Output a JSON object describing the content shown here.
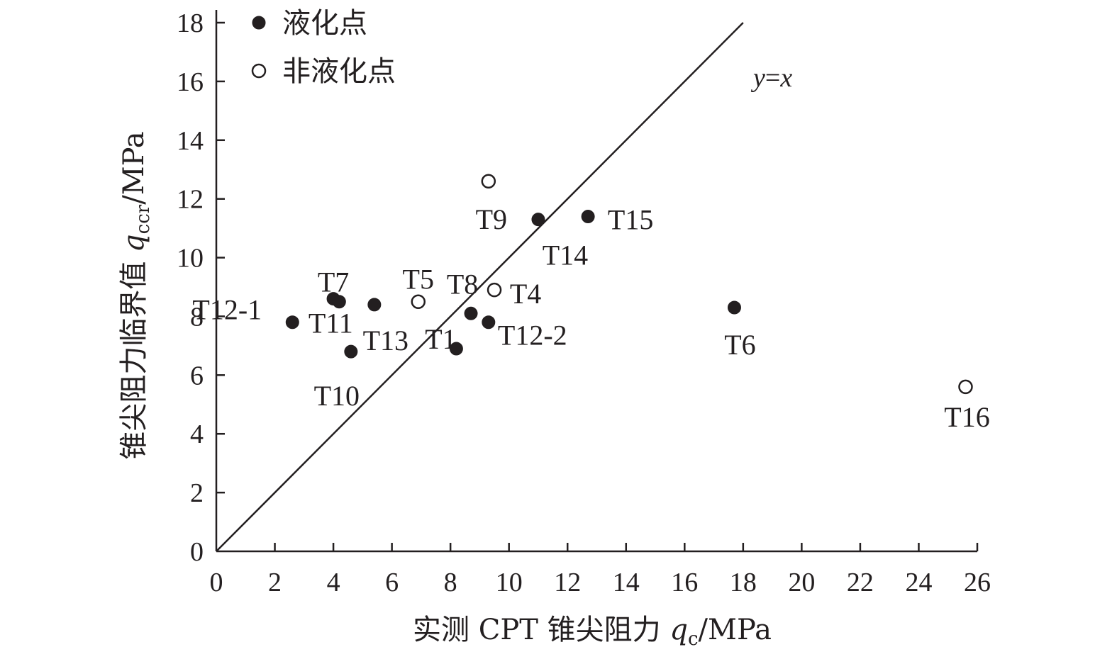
{
  "chart_data": {
    "type": "scatter",
    "title": "",
    "xlabel": {
      "prefix": "实测 CPT 锥尖阻力 ",
      "symbol": "q",
      "subscript": "c",
      "unit": "/MPa"
    },
    "ylabel": {
      "prefix": "锥尖阻力临界值 ",
      "symbol": "q",
      "subscript": "ccr",
      "unit": "/MPa"
    },
    "xlim": [
      0,
      26
    ],
    "ylim": [
      0,
      18
    ],
    "xticks": [
      "0",
      "2",
      "4",
      "6",
      "8",
      "10",
      "12",
      "14",
      "16",
      "18",
      "20",
      "22",
      "24",
      "26"
    ],
    "yticks": [
      "0",
      "2",
      "4",
      "6",
      "8",
      "10",
      "12",
      "14",
      "16",
      "18"
    ],
    "grid": false,
    "legend_position": "top-left",
    "colors": {
      "ink": "#231f20",
      "background": "#ffffff"
    },
    "reference_line": {
      "label_var1": "y",
      "label_eq": "=",
      "label_var2": "x",
      "from": [
        0,
        0
      ],
      "to": [
        18,
        18
      ]
    },
    "series": [
      {
        "name": "液化点",
        "marker": "filled-circle",
        "points": [
          {
            "label": "T12-1",
            "x": 2.6,
            "y": 7.8
          },
          {
            "label": "T7",
            "x": 4.0,
            "y": 8.6
          },
          {
            "label": "T11",
            "x": 4.2,
            "y": 8.5
          },
          {
            "label": "T10",
            "x": 4.6,
            "y": 6.8
          },
          {
            "label": "T13",
            "x": 5.4,
            "y": 8.4
          },
          {
            "label": "T1",
            "x": 8.2,
            "y": 6.9
          },
          {
            "label": "T8",
            "x": 8.7,
            "y": 8.1
          },
          {
            "label": "T12-2",
            "x": 9.3,
            "y": 7.8
          },
          {
            "label": "T14",
            "x": 11.0,
            "y": 11.3
          },
          {
            "label": "T15",
            "x": 12.7,
            "y": 11.4
          },
          {
            "label": "T6",
            "x": 17.7,
            "y": 8.3
          }
        ]
      },
      {
        "name": "非液化点",
        "marker": "open-circle",
        "points": [
          {
            "label": "T5",
            "x": 6.9,
            "y": 8.5
          },
          {
            "label": "T9",
            "x": 9.3,
            "y": 12.6
          },
          {
            "label": "T4",
            "x": 9.5,
            "y": 8.9
          },
          {
            "label": "T16",
            "x": 25.6,
            "y": 5.6
          }
        ]
      }
    ]
  }
}
